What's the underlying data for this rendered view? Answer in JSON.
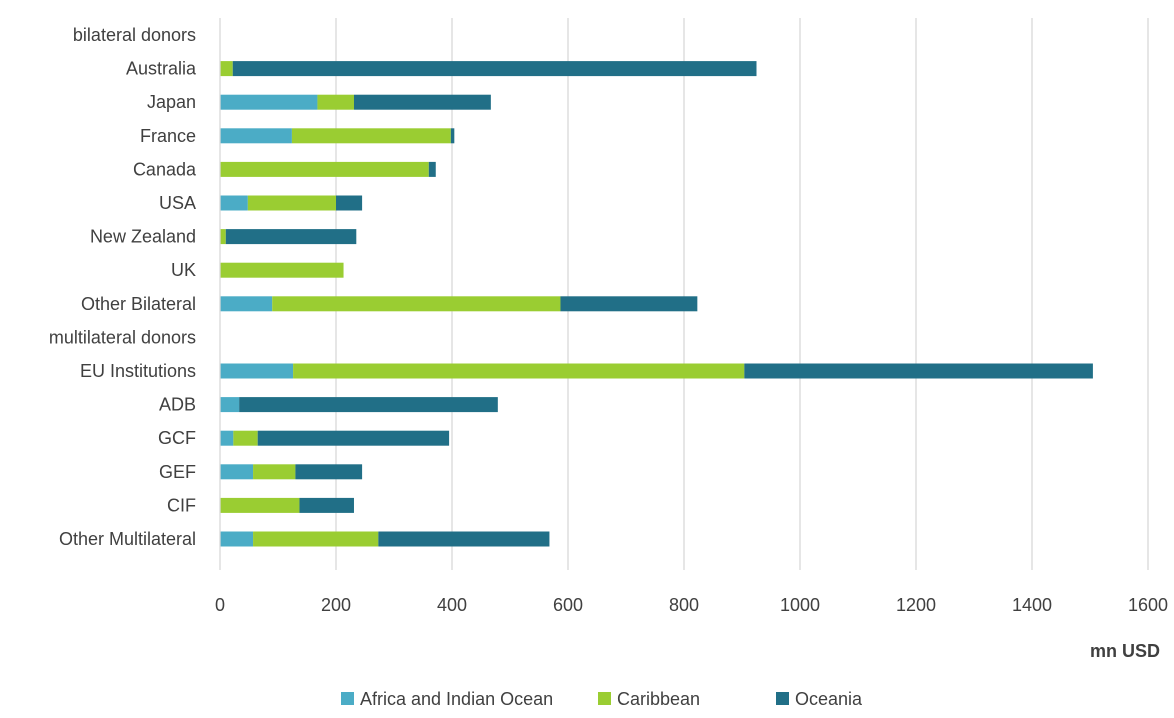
{
  "chart_data": {
    "type": "bar",
    "orientation": "horizontal",
    "stacked": true,
    "title": "",
    "xlabel": "mn USD",
    "ylabel": "",
    "xlim": [
      0,
      1600
    ],
    "xticks": [
      0,
      200,
      400,
      600,
      800,
      1000,
      1200,
      1400,
      1600
    ],
    "grid": "vertical",
    "legend_position": "bottom",
    "categories": [
      "bilateral donors",
      "Australia",
      "Japan",
      "France",
      "Canada",
      "USA",
      "New Zealand",
      "UK",
      "Other Bilateral",
      "multilateral donors",
      "EU Institutions",
      "ADB",
      "GCF",
      "GEF",
      "CIF",
      "Other Multilateral"
    ],
    "series": [
      {
        "name": "Africa and Indian Ocean",
        "color": "#4BACC6",
        "values": [
          0,
          0,
          168,
          124,
          0,
          48,
          0,
          0,
          90,
          0,
          126,
          33,
          23,
          57,
          0,
          57
        ]
      },
      {
        "name": "Caribbean",
        "color": "#9ACD32",
        "values": [
          0,
          22,
          63,
          274,
          360,
          152,
          10,
          213,
          497,
          0,
          778,
          0,
          42,
          73,
          137,
          216
        ]
      },
      {
        "name": "Oceania",
        "color": "#216F87",
        "values": [
          0,
          903,
          236,
          6,
          12,
          45,
          225,
          0,
          236,
          0,
          601,
          446,
          330,
          115,
          94,
          295
        ]
      }
    ]
  }
}
